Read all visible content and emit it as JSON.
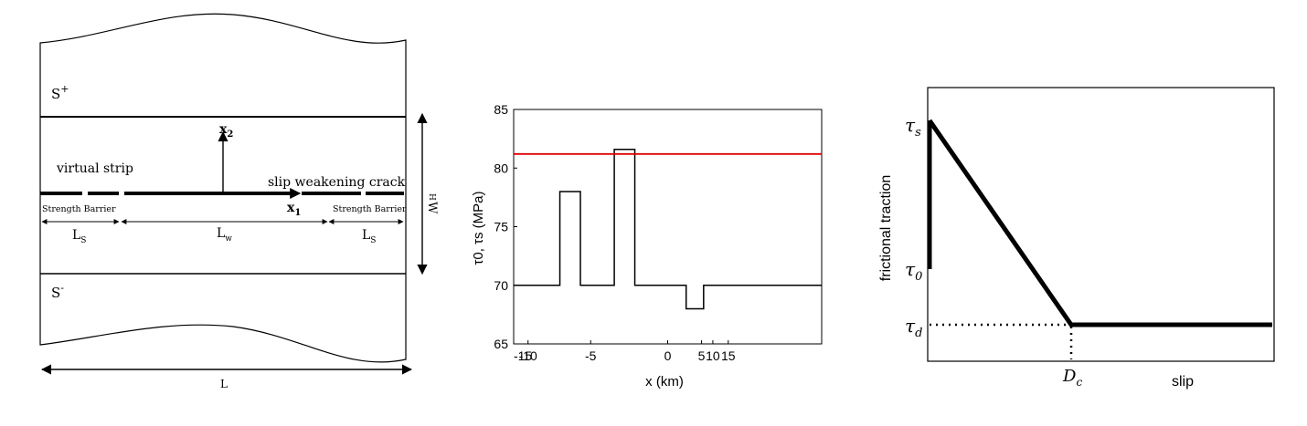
{
  "panel_a": {
    "labels": {
      "s_plus": "S",
      "s_plus_sup": "+",
      "s_minus": "S",
      "s_minus_sup": "-",
      "x2_base": "x",
      "x2_sub": "2",
      "x1_base": "x",
      "x1_sub": "1",
      "virtual_strip": "virtual strip",
      "slip_crack": "slip weakening crack",
      "barrier_left": "Strength Barrier",
      "barrier_right": "Strength Barrier",
      "ls_left_base": "L",
      "ls_left_sub": "S",
      "lw_base": "L",
      "lw_sub": "w",
      "ls_right_base": "L",
      "ls_right_sub": "S",
      "w_label": "W",
      "h_label": "H",
      "l_label": "L"
    }
  },
  "panel_b": {
    "chart_data": {
      "type": "line",
      "title": "",
      "xlabel": "x (km)",
      "ylabel": "τ0, τs (MPa)",
      "xlim": [
        -15,
        15
      ],
      "ylim": [
        65,
        85
      ],
      "x_tick_labels": [
        "-15",
        "-10",
        "-5",
        "0",
        "5",
        "10",
        "15"
      ],
      "y_tick_labels": [
        "65",
        "70",
        "75",
        "80",
        "85"
      ],
      "series": [
        {
          "role": "initial stress",
          "color": "#000000",
          "x": [
            -15,
            -10.5,
            -10.5,
            -8.5,
            -8.5,
            -5.2,
            -5.2,
            -3.2,
            -3.2,
            1.8,
            1.8,
            3.5,
            3.5,
            5.5,
            5.5,
            15
          ],
          "y": [
            70,
            70,
            78,
            78,
            70,
            70,
            81.6,
            81.6,
            70,
            70,
            68,
            68,
            70,
            70,
            70,
            70
          ]
        },
        {
          "role": "static strength",
          "color": "#e00000",
          "x": [
            -15,
            15
          ],
          "y": [
            81.2,
            81.2
          ]
        }
      ]
    },
    "tick_label_positions_km": [
      -15,
      -13.6,
      -7.5,
      0,
      3.3,
      4.4,
      5.9
    ]
  },
  "panel_c": {
    "ylabel": "frictional traction",
    "xlabel": "slip",
    "tau_s": "τ",
    "tau_s_sub": "s",
    "tau_0": "τ",
    "tau_0_sub": "0",
    "tau_d": "τ",
    "tau_d_sub": "d",
    "dc": "D",
    "dc_sub": "c"
  }
}
